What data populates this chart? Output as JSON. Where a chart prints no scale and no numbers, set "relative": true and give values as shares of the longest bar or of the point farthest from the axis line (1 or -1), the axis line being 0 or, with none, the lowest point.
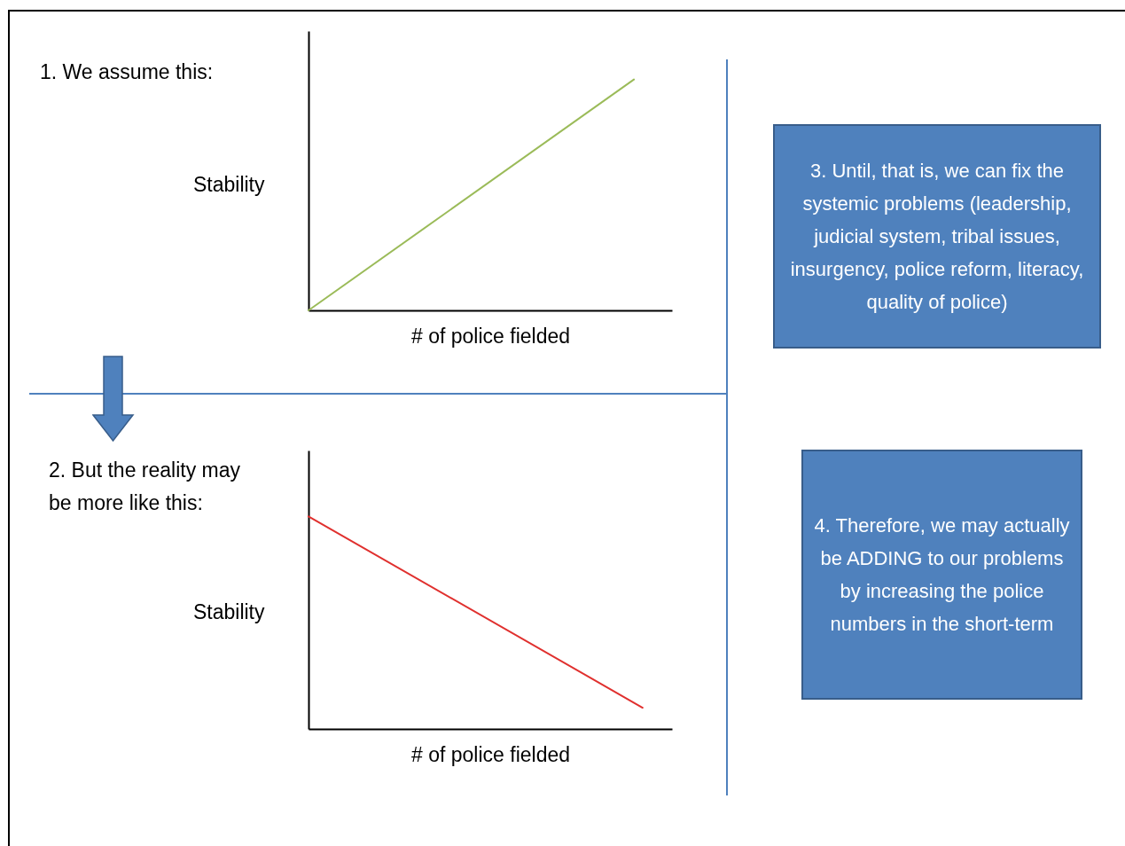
{
  "chart_data": [
    {
      "type": "line",
      "title": "1.  We assume this:",
      "xlabel": "# of police fielded",
      "ylabel": "Stability",
      "relative": true,
      "categories": [
        null,
        null
      ],
      "values": [
        0,
        1
      ],
      "color": "#9bbb59"
    },
    {
      "type": "line",
      "title": "2.  But the reality may be more like this:",
      "xlabel": "# of police fielded",
      "ylabel": "Stability",
      "relative": true,
      "categories": [
        null,
        null
      ],
      "values": [
        1,
        0.1
      ],
      "color": "#e0302e"
    },
    {
      "type": "other",
      "annotations": [
        "3. Until, that is, we can fix the systemic problems (leadership, judicial system, tribal issues, insurgency, police reform, literacy, quality of police)"
      ]
    },
    {
      "type": "other",
      "annotations": [
        "4.  Therefore, we may actually be ADDING to our problems by increasing the police numbers in the short-term"
      ]
    }
  ]
}
